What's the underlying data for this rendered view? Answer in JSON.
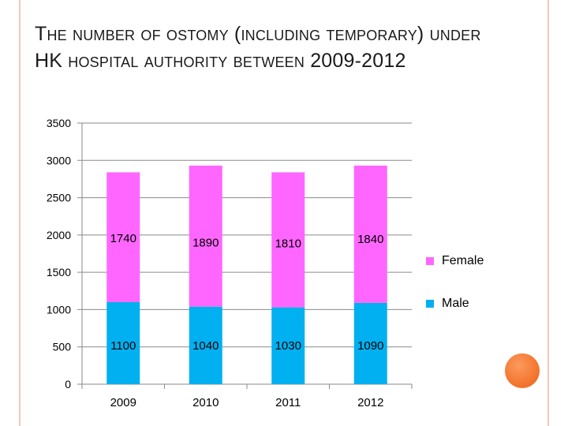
{
  "chart_data": {
    "type": "bar",
    "stacked": true,
    "title": "The number of ostomy (including temporary) under HK hospital authority between 2009-2012",
    "categories": [
      "2009",
      "2010",
      "2011",
      "2012"
    ],
    "series": [
      {
        "name": "Male",
        "values": [
          1100,
          1040,
          1030,
          1090
        ],
        "color": "#00b0f0"
      },
      {
        "name": "Female",
        "values": [
          1740,
          1890,
          1810,
          1840
        ],
        "color": "#ff66ff"
      }
    ],
    "xlabel": "",
    "ylabel": "",
    "ylim": [
      0,
      3500
    ],
    "yticks": [
      "0",
      "500",
      "1000",
      "1500",
      "2000",
      "2500",
      "3000",
      "3500"
    ],
    "grid": true,
    "legend_position": "right"
  }
}
